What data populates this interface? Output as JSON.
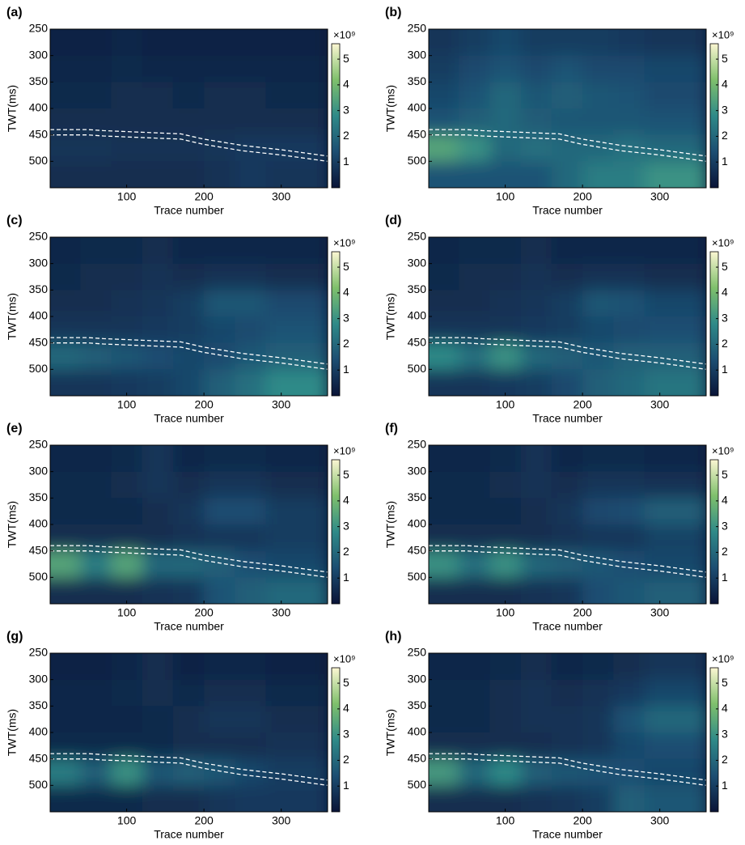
{
  "chart_data": [
    {
      "type": "heatmap",
      "panel_label": "(a)",
      "xlabel": "Trace number",
      "ylabel": "TWT(ms)",
      "colorbar_label": "×10⁹",
      "x": [
        20,
        60,
        100,
        140,
        180,
        220,
        260,
        300
      ],
      "y": [
        275,
        325,
        375,
        425,
        475,
        525
      ],
      "z": [
        [
          0.3,
          0.3,
          0.4,
          0.3,
          0.3,
          0.3,
          0.3,
          0.3
        ],
        [
          0.4,
          0.4,
          0.5,
          0.4,
          0.4,
          0.4,
          0.4,
          0.4
        ],
        [
          0.5,
          0.5,
          0.6,
          0.6,
          0.5,
          0.6,
          0.6,
          0.5
        ],
        [
          0.6,
          0.6,
          0.6,
          0.6,
          0.6,
          0.6,
          0.6,
          0.6
        ],
        [
          0.8,
          0.8,
          0.7,
          0.7,
          0.7,
          0.8,
          0.9,
          0.9
        ],
        [
          0.6,
          0.6,
          0.6,
          0.6,
          0.6,
          0.7,
          0.9,
          0.8
        ]
      ],
      "xlim": [
        1,
        360
      ],
      "xticks": [
        100,
        200,
        300
      ],
      "ylim": [
        250,
        550
      ],
      "yticks": [
        250,
        300,
        350,
        400,
        450,
        500
      ],
      "clim": [
        0,
        5.6
      ],
      "cticks": [
        1,
        2,
        3,
        4,
        5
      ],
      "colormap": [
        "#0a1437",
        "#1c4e72",
        "#2f8a88",
        "#7fc06c",
        "#fbf6d2"
      ],
      "horizon_x": [
        1,
        50,
        70,
        170,
        200,
        250,
        300,
        360
      ],
      "horizon_top": [
        440,
        440,
        442,
        448,
        458,
        470,
        478,
        490
      ],
      "horizon_bottom": [
        450,
        450,
        452,
        458,
        468,
        480,
        488,
        500
      ],
      "horizon_color": "#ffffff"
    },
    {
      "type": "heatmap",
      "panel_label": "(b)",
      "xlabel": "Trace number",
      "ylabel": "TWT(ms)",
      "colorbar_label": "×10⁹",
      "x": [
        20,
        60,
        100,
        140,
        180,
        220,
        260,
        300
      ],
      "y": [
        275,
        325,
        375,
        425,
        475,
        525
      ],
      "z": [
        [
          0.8,
          1,
          1.2,
          1,
          1,
          1,
          0.9,
          0.8
        ],
        [
          1,
          1.3,
          1.5,
          1.3,
          1.5,
          1.3,
          1.3,
          1.2
        ],
        [
          1.2,
          1.5,
          2,
          1.6,
          1.8,
          1.6,
          1.5,
          1.3
        ],
        [
          1.5,
          1.8,
          2,
          1.7,
          1.6,
          1.6,
          1.6,
          1.5
        ],
        [
          3.5,
          3,
          2,
          2.2,
          2,
          2,
          2.2,
          2
        ],
        [
          1.5,
          1.5,
          1.5,
          1.5,
          2,
          2.5,
          2.5,
          3
        ]
      ],
      "xlim": [
        1,
        360
      ],
      "xticks": [
        100,
        200,
        300
      ],
      "ylim": [
        250,
        550
      ],
      "yticks": [
        250,
        300,
        350,
        400,
        450,
        500
      ],
      "clim": [
        0,
        5.6
      ],
      "cticks": [
        1,
        2,
        3,
        4,
        5
      ],
      "colormap": [
        "#0a1437",
        "#1c4e72",
        "#2f8a88",
        "#7fc06c",
        "#fbf6d2"
      ],
      "horizon_x": [
        1,
        50,
        70,
        170,
        200,
        250,
        300,
        360
      ],
      "horizon_top": [
        440,
        440,
        442,
        448,
        458,
        470,
        478,
        490
      ],
      "horizon_bottom": [
        450,
        450,
        452,
        458,
        468,
        480,
        488,
        500
      ],
      "horizon_color": "#ffffff"
    },
    {
      "type": "heatmap",
      "panel_label": "(c)",
      "xlabel": "Trace number",
      "ylabel": "TWT(ms)",
      "colorbar_label": "×10⁹",
      "x": [
        20,
        60,
        100,
        140,
        180,
        220,
        260,
        300
      ],
      "y": [
        275,
        325,
        375,
        425,
        475,
        525
      ],
      "z": [
        [
          0.4,
          0.5,
          0.5,
          0.6,
          0.4,
          0.4,
          0.4,
          0.4
        ],
        [
          0.5,
          0.6,
          0.6,
          0.7,
          0.6,
          0.7,
          0.7,
          0.6
        ],
        [
          0.6,
          0.6,
          0.7,
          0.8,
          1,
          1.6,
          1.6,
          1.3
        ],
        [
          0.8,
          0.8,
          0.8,
          0.9,
          1,
          1.2,
          1.3,
          1.5
        ],
        [
          2,
          1.8,
          1.6,
          1.4,
          1.2,
          1.3,
          1.6,
          1.8
        ],
        [
          0.8,
          0.8,
          0.9,
          1,
          1.2,
          1.8,
          2.2,
          2.8
        ]
      ],
      "xlim": [
        1,
        360
      ],
      "xticks": [
        100,
        200,
        300
      ],
      "ylim": [
        250,
        550
      ],
      "yticks": [
        250,
        300,
        350,
        400,
        450,
        500
      ],
      "clim": [
        0,
        5.6
      ],
      "cticks": [
        1,
        2,
        3,
        4,
        5
      ],
      "colormap": [
        "#0a1437",
        "#1c4e72",
        "#2f8a88",
        "#7fc06c",
        "#fbf6d2"
      ],
      "horizon_x": [
        1,
        50,
        70,
        170,
        200,
        250,
        300,
        360
      ],
      "horizon_top": [
        440,
        440,
        442,
        448,
        458,
        470,
        478,
        490
      ],
      "horizon_bottom": [
        450,
        450,
        452,
        458,
        468,
        480,
        488,
        500
      ],
      "horizon_color": "#ffffff"
    },
    {
      "type": "heatmap",
      "panel_label": "(d)",
      "xlabel": "Trace number",
      "ylabel": "TWT(ms)",
      "colorbar_label": "×10⁹",
      "x": [
        20,
        60,
        100,
        140,
        180,
        220,
        260,
        300
      ],
      "y": [
        275,
        325,
        375,
        425,
        475,
        525
      ],
      "z": [
        [
          0.4,
          0.5,
          0.5,
          0.6,
          0.4,
          0.4,
          0.4,
          0.4
        ],
        [
          0.5,
          0.6,
          0.6,
          0.7,
          0.6,
          0.7,
          0.7,
          0.6
        ],
        [
          0.6,
          0.6,
          0.7,
          0.8,
          1,
          1.6,
          1.5,
          1.2
        ],
        [
          0.8,
          0.8,
          0.8,
          0.9,
          1,
          1.2,
          1.3,
          1.4
        ],
        [
          2.8,
          2.2,
          3,
          2,
          1.8,
          1.6,
          1.8,
          1.8
        ],
        [
          0.8,
          0.8,
          0.9,
          1,
          1.3,
          1.8,
          2,
          2.3
        ]
      ],
      "xlim": [
        1,
        360
      ],
      "xticks": [
        100,
        200,
        300
      ],
      "ylim": [
        250,
        550
      ],
      "yticks": [
        250,
        300,
        350,
        400,
        450,
        500
      ],
      "clim": [
        0,
        5.6
      ],
      "cticks": [
        1,
        2,
        3,
        4,
        5
      ],
      "colormap": [
        "#0a1437",
        "#1c4e72",
        "#2f8a88",
        "#7fc06c",
        "#fbf6d2"
      ],
      "horizon_x": [
        1,
        50,
        70,
        170,
        200,
        250,
        300,
        360
      ],
      "horizon_top": [
        440,
        440,
        442,
        448,
        458,
        470,
        478,
        490
      ],
      "horizon_bottom": [
        450,
        450,
        452,
        458,
        468,
        480,
        488,
        500
      ],
      "horizon_color": "#ffffff"
    },
    {
      "type": "heatmap",
      "panel_label": "(e)",
      "xlabel": "Trace number",
      "ylabel": "TWT(ms)",
      "colorbar_label": "×10⁹",
      "x": [
        20,
        60,
        100,
        140,
        180,
        220,
        260,
        300
      ],
      "y": [
        275,
        325,
        375,
        425,
        475,
        525
      ],
      "z": [
        [
          0.4,
          0.4,
          0.5,
          0.8,
          0.4,
          0.5,
          0.5,
          0.4
        ],
        [
          0.5,
          0.5,
          0.6,
          0.8,
          0.6,
          0.8,
          0.8,
          0.6
        ],
        [
          0.5,
          0.5,
          0.5,
          0.6,
          0.8,
          1.4,
          1.4,
          1
        ],
        [
          0.6,
          0.6,
          0.6,
          0.6,
          0.7,
          0.8,
          0.8,
          1
        ],
        [
          3.5,
          2.5,
          3.5,
          2,
          2,
          1.8,
          1.4,
          1.2
        ],
        [
          0.6,
          0.6,
          0.6,
          0.7,
          0.8,
          1.5,
          1.8,
          2
        ]
      ],
      "xlim": [
        1,
        360
      ],
      "xticks": [
        100,
        200,
        300
      ],
      "ylim": [
        250,
        550
      ],
      "yticks": [
        250,
        300,
        350,
        400,
        450,
        500
      ],
      "clim": [
        0,
        5.6
      ],
      "cticks": [
        1,
        2,
        3,
        4,
        5
      ],
      "colormap": [
        "#0a1437",
        "#1c4e72",
        "#2f8a88",
        "#7fc06c",
        "#fbf6d2"
      ],
      "horizon_x": [
        1,
        50,
        70,
        170,
        200,
        250,
        300,
        360
      ],
      "horizon_top": [
        440,
        440,
        442,
        448,
        458,
        470,
        478,
        490
      ],
      "horizon_bottom": [
        450,
        450,
        452,
        458,
        468,
        480,
        488,
        500
      ],
      "horizon_color": "#ffffff"
    },
    {
      "type": "heatmap",
      "panel_label": "(f)",
      "xlabel": "Trace number",
      "ylabel": "TWT(ms)",
      "colorbar_label": "×10⁹",
      "x": [
        20,
        60,
        100,
        140,
        180,
        220,
        260,
        300
      ],
      "y": [
        275,
        325,
        375,
        425,
        475,
        525
      ],
      "z": [
        [
          0.4,
          0.4,
          0.5,
          0.7,
          0.4,
          0.5,
          0.5,
          0.4
        ],
        [
          0.5,
          0.5,
          0.6,
          0.7,
          0.6,
          0.8,
          0.8,
          0.7
        ],
        [
          0.5,
          0.5,
          0.5,
          0.6,
          0.8,
          1.3,
          1.4,
          1.8
        ],
        [
          0.6,
          0.6,
          0.6,
          0.6,
          0.7,
          0.8,
          0.8,
          1.1
        ],
        [
          3,
          2.2,
          3,
          2,
          1.8,
          1.6,
          1.4,
          1.2
        ],
        [
          0.6,
          0.6,
          0.6,
          0.7,
          0.8,
          1.4,
          1.6,
          1.8
        ]
      ],
      "xlim": [
        1,
        360
      ],
      "xticks": [
        100,
        200,
        300
      ],
      "ylim": [
        250,
        550
      ],
      "yticks": [
        250,
        300,
        350,
        400,
        450,
        500
      ],
      "clim": [
        0,
        5.6
      ],
      "cticks": [
        1,
        2,
        3,
        4,
        5
      ],
      "colormap": [
        "#0a1437",
        "#1c4e72",
        "#2f8a88",
        "#7fc06c",
        "#fbf6d2"
      ],
      "horizon_x": [
        1,
        50,
        70,
        170,
        200,
        250,
        300,
        360
      ],
      "horizon_top": [
        440,
        440,
        442,
        448,
        458,
        470,
        478,
        490
      ],
      "horizon_bottom": [
        450,
        450,
        452,
        458,
        468,
        480,
        488,
        500
      ],
      "horizon_color": "#ffffff"
    },
    {
      "type": "heatmap",
      "panel_label": "(g)",
      "xlabel": "Trace number",
      "ylabel": "TWT(ms)",
      "colorbar_label": "×10⁹",
      "x": [
        20,
        60,
        100,
        140,
        180,
        220,
        260,
        300
      ],
      "y": [
        275,
        325,
        375,
        425,
        475,
        525
      ],
      "z": [
        [
          0.3,
          0.3,
          0.4,
          0.6,
          0.3,
          0.4,
          0.4,
          0.3
        ],
        [
          0.4,
          0.4,
          0.5,
          0.6,
          0.5,
          0.6,
          0.6,
          0.5
        ],
        [
          0.4,
          0.4,
          0.4,
          0.5,
          0.6,
          0.8,
          0.8,
          0.6
        ],
        [
          0.5,
          0.5,
          0.5,
          0.5,
          0.6,
          0.6,
          0.6,
          0.7
        ],
        [
          2.5,
          1.8,
          3,
          1.6,
          1.8,
          1.6,
          1.2,
          1
        ],
        [
          0.5,
          0.5,
          0.5,
          0.6,
          0.6,
          0.8,
          0.9,
          0.9
        ]
      ],
      "xlim": [
        1,
        360
      ],
      "xticks": [
        100,
        200,
        300
      ],
      "ylim": [
        250,
        550
      ],
      "yticks": [
        250,
        300,
        350,
        400,
        450,
        500
      ],
      "clim": [
        0,
        5.6
      ],
      "cticks": [
        1,
        2,
        3,
        4,
        5
      ],
      "colormap": [
        "#0a1437",
        "#1c4e72",
        "#2f8a88",
        "#7fc06c",
        "#fbf6d2"
      ],
      "horizon_x": [
        1,
        50,
        70,
        170,
        200,
        250,
        300,
        360
      ],
      "horizon_top": [
        440,
        440,
        442,
        448,
        458,
        470,
        478,
        490
      ],
      "horizon_bottom": [
        450,
        450,
        452,
        458,
        468,
        480,
        488,
        500
      ],
      "horizon_color": "#ffffff"
    },
    {
      "type": "heatmap",
      "panel_label": "(h)",
      "xlabel": "Trace number",
      "ylabel": "TWT(ms)",
      "colorbar_label": "×10⁹",
      "x": [
        20,
        60,
        100,
        140,
        180,
        220,
        260,
        300
      ],
      "y": [
        275,
        325,
        375,
        425,
        475,
        525
      ],
      "z": [
        [
          0.4,
          0.4,
          0.5,
          0.6,
          0.4,
          0.5,
          0.6,
          0.8
        ],
        [
          0.5,
          0.5,
          0.6,
          0.7,
          0.6,
          0.7,
          0.9,
          1.2
        ],
        [
          0.5,
          0.5,
          0.6,
          0.7,
          0.7,
          0.8,
          1.5,
          2
        ],
        [
          0.6,
          0.6,
          0.6,
          0.6,
          0.7,
          0.8,
          1.2,
          1.4
        ],
        [
          3.2,
          2,
          2.8,
          1.8,
          1.6,
          1.5,
          1.4,
          1.2
        ],
        [
          0.6,
          0.6,
          0.6,
          0.7,
          0.8,
          1,
          1.8,
          1.6
        ]
      ],
      "xlim": [
        1,
        360
      ],
      "xticks": [
        100,
        200,
        300
      ],
      "ylim": [
        250,
        550
      ],
      "yticks": [
        250,
        300,
        350,
        400,
        450,
        500
      ],
      "clim": [
        0,
        5.6
      ],
      "cticks": [
        1,
        2,
        3,
        4,
        5
      ],
      "colormap": [
        "#0a1437",
        "#1c4e72",
        "#2f8a88",
        "#7fc06c",
        "#fbf6d2"
      ],
      "horizon_x": [
        1,
        50,
        70,
        170,
        200,
        250,
        300,
        360
      ],
      "horizon_top": [
        440,
        440,
        442,
        448,
        458,
        470,
        478,
        490
      ],
      "horizon_bottom": [
        450,
        450,
        452,
        458,
        468,
        480,
        488,
        500
      ],
      "horizon_color": "#ffffff"
    }
  ]
}
